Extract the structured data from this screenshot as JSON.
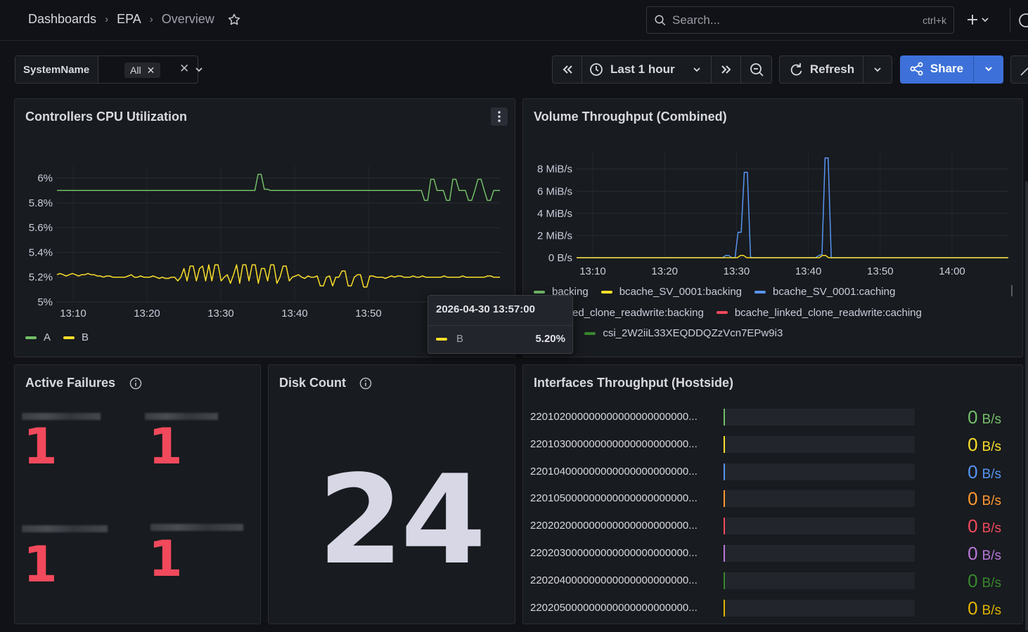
{
  "breadcrumb": {
    "root": "Dashboards",
    "folder": "EPA",
    "page": "Overview"
  },
  "search": {
    "placeholder": "Search...",
    "shortcut": "ctrl+k"
  },
  "variable": {
    "label": "SystemName",
    "value": "All"
  },
  "toolbar": {
    "time_range": "Last 1 hour",
    "refresh_label": "Refresh",
    "share_label": "Share"
  },
  "cpu_panel": {
    "title": "Controllers CPU Utilization",
    "legend": [
      {
        "name": "A",
        "color": "#73bf69"
      },
      {
        "name": "B",
        "color": "#fade2a"
      }
    ],
    "tooltip": {
      "time": "2026-04-30 13:57:00",
      "series": "B",
      "value": "5.20%"
    }
  },
  "volume_panel": {
    "title": "Volume Throughput (Combined)",
    "legend": [
      {
        "name": "backing",
        "color": "#73bf69"
      },
      {
        "name": "bcache_SV_0001:backing",
        "color": "#fade2a"
      },
      {
        "name": "bcache_SV_0001:caching",
        "color": "#5794f2"
      },
      {
        "name": "che_linked_clone_readwrite:backing",
        "color": "#ff9830"
      },
      {
        "name": "bcache_linked_clone_readwrite:caching",
        "color": "#f2495c"
      },
      {
        "name": "hing",
        "color": "#b877d9"
      },
      {
        "name": "csi_2W2iiL33XEQDDQZzVcn7EPw9i3",
        "color": "#37872d"
      }
    ]
  },
  "failures_panel": {
    "title": "Active Failures",
    "values": [
      "1",
      "1",
      "1",
      "1"
    ]
  },
  "disk_panel": {
    "title": "Disk Count",
    "value": "24"
  },
  "interfaces_panel": {
    "title": "Interfaces Throughput (Hostside)",
    "rows": [
      {
        "name": "220102000000000000000000000...",
        "value": "0",
        "unit": "B/s",
        "color": "#73bf69",
        "fill": 0
      },
      {
        "name": "220103000000000000000000000...",
        "value": "0",
        "unit": "B/s",
        "color": "#fade2a",
        "fill": 0
      },
      {
        "name": "220104000000000000000000000...",
        "value": "0",
        "unit": "B/s",
        "color": "#5794f2",
        "fill": 0
      },
      {
        "name": "220105000000000000000000000...",
        "value": "0",
        "unit": "B/s",
        "color": "#ff9830",
        "fill": 0
      },
      {
        "name": "220202000000000000000000000...",
        "value": "0",
        "unit": "B/s",
        "color": "#f2495c",
        "fill": 0
      },
      {
        "name": "220203000000000000000000000...",
        "value": "0",
        "unit": "B/s",
        "color": "#b877d9",
        "fill": 0
      },
      {
        "name": "220204000000000000000000000...",
        "value": "0",
        "unit": "B/s",
        "color": "#37872d",
        "fill": 0
      },
      {
        "name": "220205000000000000000000000...",
        "value": "0",
        "unit": "B/s",
        "color": "#e0b400",
        "fill": 0
      }
    ]
  },
  "chart_data": [
    {
      "type": "line",
      "ylim": [
        5,
        6.1
      ],
      "yticks": [
        "6%",
        "5.8%",
        "5.6%",
        "5.4%",
        "5.2%",
        "5%"
      ],
      "yvals": [
        6,
        5.8,
        5.6,
        5.4,
        5.2,
        5
      ],
      "xticks": [
        "13:10",
        "13:20",
        "13:30",
        "13:40",
        "13:50"
      ],
      "series": [
        {
          "name": "A",
          "color": "#73bf69",
          "values": [
            5.9,
            5.9,
            5.9,
            5.9,
            5.9,
            5.9,
            5.9,
            5.9,
            5.9,
            5.9,
            5.9,
            5.9,
            5.9,
            5.9,
            5.9,
            5.9,
            5.9,
            5.9,
            5.9,
            5.9,
            5.9,
            5.9,
            5.9,
            5.9,
            5.9,
            5.9,
            5.9,
            5.9,
            5.9,
            5.9,
            5.9,
            5.9,
            5.9,
            5.9,
            5.9,
            5.9,
            5.9,
            5.9,
            5.9,
            5.9,
            5.9,
            5.9,
            5.9,
            5.9,
            5.9,
            5.9,
            5.9,
            5.9,
            5.9,
            5.9,
            5.9,
            5.9,
            5.9,
            5.9,
            5.9,
            5.9,
            5.9,
            5.9,
            5.9,
            5.9,
            5.9,
            5.9,
            5.9,
            5.9,
            6.03,
            6.03,
            5.91,
            5.91,
            5.9,
            5.9,
            5.9,
            5.9,
            5.9,
            5.9,
            5.9,
            5.9,
            5.9,
            5.9,
            5.9,
            5.9,
            5.9,
            5.9,
            5.9,
            5.9,
            5.9,
            5.9,
            5.9,
            5.9,
            5.9,
            5.9,
            5.9,
            5.9,
            5.9,
            5.9,
            5.9,
            5.9,
            5.9,
            5.9,
            5.9,
            5.9,
            5.9,
            5.9,
            5.9,
            5.9,
            5.9,
            5.9,
            5.9,
            5.9,
            5.9,
            5.9,
            5.9,
            5.9,
            5.9,
            5.9,
            5.9,
            5.9,
            5.9,
            5.82,
            5.82,
            5.99,
            5.99,
            5.9,
            5.9,
            5.9,
            5.82,
            5.82,
            5.99,
            5.99,
            5.9,
            5.9,
            5.9,
            5.82,
            5.82,
            5.9,
            5.99,
            5.99,
            5.9,
            5.82,
            5.82,
            5.9,
            5.9,
            5.9
          ]
        },
        {
          "name": "B",
          "color": "#fade2a",
          "values": [
            5.22,
            5.23,
            5.22,
            5.21,
            5.22,
            5.23,
            5.22,
            5.21,
            5.22,
            5.22,
            5.23,
            5.22,
            5.22,
            5.21,
            5.21,
            5.2,
            5.21,
            5.21,
            5.2,
            5.2,
            5.2,
            5.2,
            5.2,
            5.21,
            5.22,
            5.2,
            5.2,
            5.21,
            5.2,
            5.2,
            5.2,
            5.21,
            5.2,
            5.19,
            5.2,
            5.19,
            5.19,
            5.2,
            5.2,
            5.17,
            5.2,
            5.27,
            5.17,
            5.29,
            5.29,
            5.17,
            5.27,
            5.29,
            5.17,
            5.3,
            5.17,
            5.3,
            5.3,
            5.17,
            5.2,
            5.22,
            5.15,
            5.22,
            5.3,
            5.15,
            5.3,
            5.3,
            5.17,
            5.3,
            5.3,
            5.15,
            5.27,
            5.27,
            5.17,
            5.3,
            5.3,
            5.15,
            5.2,
            5.29,
            5.29,
            5.17,
            5.2,
            5.21,
            5.22,
            5.2,
            5.19,
            5.21,
            5.2,
            5.2,
            5.21,
            5.13,
            5.13,
            5.2,
            5.21,
            5.13,
            5.2,
            5.2,
            5.25,
            5.25,
            5.13,
            5.13,
            5.2,
            5.22,
            5.22,
            5.12,
            5.12,
            5.21,
            5.21,
            5.2,
            5.2,
            5.2,
            5.19,
            5.2,
            5.21,
            5.2,
            5.21,
            5.21,
            5.2,
            5.2,
            5.2,
            5.21,
            5.2,
            5.2,
            5.21,
            5.2,
            5.2,
            5.2,
            5.2,
            5.2,
            5.2,
            5.21,
            5.2,
            5.2,
            5.2,
            5.2,
            5.2,
            5.21,
            5.2,
            5.2,
            5.2,
            5.2,
            5.2,
            5.2,
            5.2,
            5.21,
            5.21,
            5.2,
            5.2,
            5.2
          ]
        }
      ]
    },
    {
      "type": "line",
      "ylim": [
        0,
        9.5
      ],
      "yticks": [
        "8 MiB/s",
        "6 MiB/s",
        "4 MiB/s",
        "2 MiB/s",
        "0 B/s"
      ],
      "yvals": [
        8,
        6,
        4,
        2,
        0
      ],
      "xticks": [
        "13:10",
        "13:20",
        "13:30",
        "13:40",
        "13:50",
        "14:00"
      ],
      "series": [
        {
          "name": "bcache_SV_0001:caching",
          "color": "#5794f2",
          "values": [
            0,
            0,
            0,
            0,
            0,
            0,
            0,
            0,
            0,
            0,
            0,
            0,
            0,
            0,
            0,
            0,
            0,
            0,
            0,
            0,
            0,
            0,
            0,
            0,
            0,
            0,
            0,
            0,
            0,
            0,
            0,
            0,
            0,
            0,
            0,
            0,
            0,
            0,
            0,
            0,
            0,
            0,
            0,
            0,
            0,
            0,
            0,
            0,
            0.2,
            0.2,
            0,
            0,
            2.3,
            2.3,
            7.7,
            7.7,
            0.05,
            0,
            0,
            0,
            0,
            0,
            0,
            0,
            0,
            0,
            0,
            0,
            0,
            0,
            0,
            0,
            0,
            0,
            0,
            0,
            0,
            0,
            0.2,
            0.3,
            9,
            9,
            0,
            0,
            0,
            0,
            0,
            0,
            0,
            0,
            0,
            0,
            0,
            0,
            0,
            0,
            0,
            0,
            0,
            0,
            0,
            0,
            0,
            0,
            0,
            0,
            0,
            0,
            0,
            0,
            0,
            0,
            0,
            0,
            0,
            0,
            0,
            0,
            0,
            0,
            0,
            0,
            0,
            0,
            0,
            0,
            0,
            0,
            0,
            0,
            0,
            0,
            0,
            0,
            0,
            0,
            0,
            0,
            0,
            0
          ]
        },
        {
          "name": "bcache_SV_0001:backing",
          "color": "#fade2a",
          "values": [
            0,
            0,
            0,
            0,
            0,
            0,
            0,
            0,
            0,
            0,
            0,
            0,
            0,
            0,
            0,
            0,
            0,
            0,
            0,
            0,
            0,
            0,
            0,
            0,
            0,
            0,
            0,
            0,
            0,
            0,
            0,
            0,
            0,
            0,
            0,
            0,
            0,
            0,
            0,
            0,
            0,
            0,
            0,
            0,
            0,
            0,
            0,
            0,
            0,
            0,
            0,
            0,
            0.2,
            0.2,
            0,
            0,
            0,
            0,
            0,
            0,
            0,
            0,
            0,
            0,
            0,
            0,
            0,
            0,
            0,
            0,
            0,
            0,
            0,
            0,
            0,
            0,
            0,
            0,
            0.2,
            0.2,
            0,
            0,
            0,
            0,
            0,
            0,
            0,
            0,
            0,
            0,
            0,
            0,
            0,
            0,
            0,
            0,
            0,
            0,
            0,
            0,
            0,
            0,
            0,
            0,
            0,
            0,
            0,
            0,
            0,
            0,
            0,
            0,
            0,
            0,
            0,
            0,
            0,
            0,
            0,
            0,
            0,
            0,
            0,
            0,
            0,
            0,
            0,
            0,
            0,
            0,
            0,
            0,
            0,
            0,
            0,
            0,
            0,
            0
          ]
        }
      ]
    }
  ]
}
